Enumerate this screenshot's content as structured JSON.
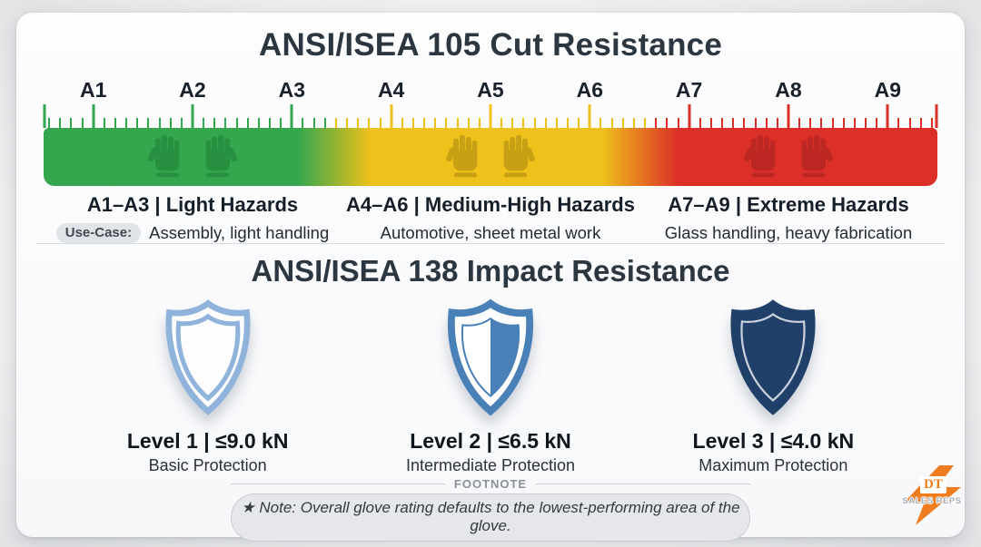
{
  "section_cut": {
    "title": "ANSI/ISEA 105 Cut Resistance",
    "scale_labels": [
      "A1",
      "A2",
      "A3",
      "A4",
      "A5",
      "A6",
      "A7",
      "A8",
      "A9"
    ],
    "colors": {
      "green": "#34a64e",
      "yellow": "#eec11b",
      "red": "#dc2f27"
    },
    "use_case_label": "Use-Case:",
    "zones": [
      {
        "heading": "A1–A3 | Light Hazards",
        "use_case": "Assembly, light handling"
      },
      {
        "heading": "A4–A6 | Medium-High Hazards",
        "use_case": "Automotive, sheet metal work"
      },
      {
        "heading": "A7–A9 | Extreme Hazards",
        "use_case": "Glass handling, heavy fabrication"
      }
    ]
  },
  "section_impact": {
    "title": "ANSI/ISEA 138 Impact Resistance",
    "shield_colors": {
      "light": "#8fb3da",
      "medium": "#4a80b8",
      "dark": "#20406a"
    },
    "levels": [
      {
        "heading": "Level 1 | ≤9.0 kN",
        "subtitle": "Basic Protection",
        "shield": "outline"
      },
      {
        "heading": "Level 2 | ≤6.5 kN",
        "subtitle": "Intermediate Protection",
        "shield": "half-filled"
      },
      {
        "heading": "Level 3 | ≤4.0 kN",
        "subtitle": "Maximum Protection",
        "shield": "filled"
      }
    ]
  },
  "footnote": {
    "label": "FOOTNOTE",
    "note": "★ Note: Overall glove rating defaults to the lowest-performing area of the glove."
  },
  "logo": {
    "primary": "DT",
    "secondary": "SALES REPS",
    "accent": "#ef7d1f"
  }
}
